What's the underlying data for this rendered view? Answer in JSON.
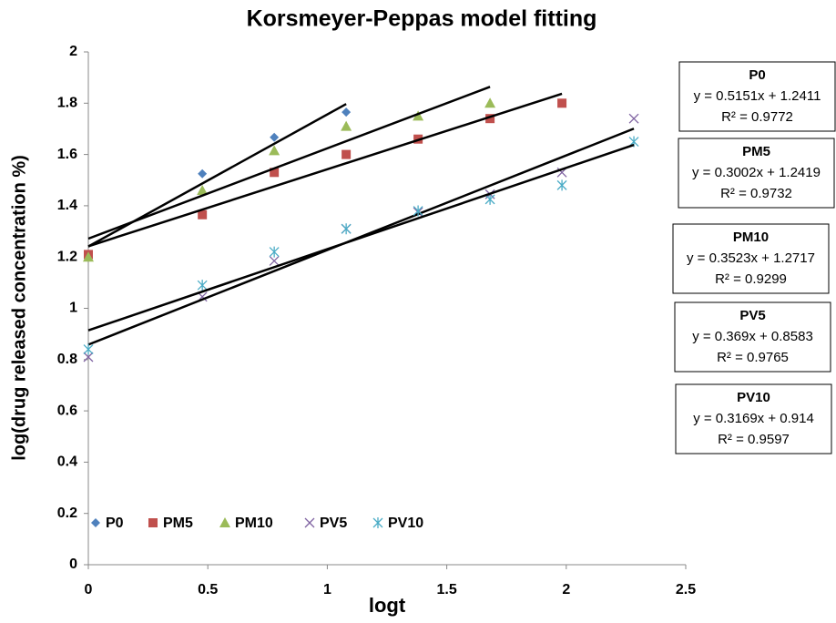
{
  "chart_data": {
    "type": "scatter",
    "title": "Korsmeyer-Peppas  model fitting",
    "x_label": "logt",
    "y_label": "log(drug released concentration %)",
    "xlim": [
      0,
      2.5
    ],
    "xticks": [
      0,
      0.5,
      1,
      1.5,
      2,
      2.5
    ],
    "ylim": [
      0,
      2
    ],
    "yticks": [
      0,
      0.2,
      0.4,
      0.6,
      0.8,
      1,
      1.2,
      1.4,
      1.6,
      1.8,
      2
    ],
    "grid": false,
    "legend": "bottom-left",
    "series": [
      {
        "name": "P0",
        "color": "#4f81bd",
        "marker": "diamond",
        "x": [
          0,
          0.477,
          0.778,
          1.079
        ],
        "values": [
          1.2,
          1.525,
          1.667,
          1.765
        ],
        "trendline": {
          "slope": 0.5151,
          "intercept": 1.2411,
          "equation": "y = 0.5151x + 1.2411",
          "r2": "R² = 0.9772"
        }
      },
      {
        "name": "PM5",
        "color": "#c0504d",
        "marker": "square",
        "x": [
          0,
          0.477,
          0.778,
          1.079,
          1.38,
          1.681,
          1.982
        ],
        "values": [
          1.21,
          1.365,
          1.53,
          1.6,
          1.66,
          1.74,
          1.8
        ],
        "trendline": {
          "slope": 0.3002,
          "intercept": 1.2419,
          "equation": "y = 0.3002x + 1.2419",
          "r2": "R² = 0.9732"
        }
      },
      {
        "name": "PM10",
        "color": "#9bbb59",
        "marker": "triangle",
        "x": [
          0,
          0.477,
          0.778,
          1.079,
          1.38,
          1.681
        ],
        "values": [
          1.2,
          1.46,
          1.615,
          1.71,
          1.75,
          1.8
        ],
        "trendline": {
          "slope": 0.3523,
          "intercept": 1.2717,
          "equation": "y = 0.3523x + 1.2717",
          "r2": "R² = 0.9299"
        }
      },
      {
        "name": "PV5",
        "color": "#8064a2",
        "marker": "x",
        "x": [
          0,
          0.477,
          0.778,
          1.079,
          1.38,
          1.681,
          1.982,
          2.283
        ],
        "values": [
          0.81,
          1.045,
          1.185,
          1.31,
          1.375,
          1.445,
          1.53,
          1.74
        ],
        "trendline": {
          "slope": 0.369,
          "intercept": 0.8583,
          "equation": "y = 0.369x + 0.8583",
          "r2": "R² = 0.9765"
        }
      },
      {
        "name": "PV10",
        "color": "#4bacc6",
        "marker": "star",
        "x": [
          0,
          0.477,
          0.778,
          1.079,
          1.38,
          1.681,
          1.982,
          2.283
        ],
        "values": [
          0.84,
          1.09,
          1.22,
          1.31,
          1.38,
          1.425,
          1.48,
          1.65
        ],
        "trendline": {
          "slope": 0.3169,
          "intercept": 0.914,
          "equation": "y = 0.3169x + 0.914",
          "r2": "R² = 0.9597"
        }
      }
    ]
  }
}
